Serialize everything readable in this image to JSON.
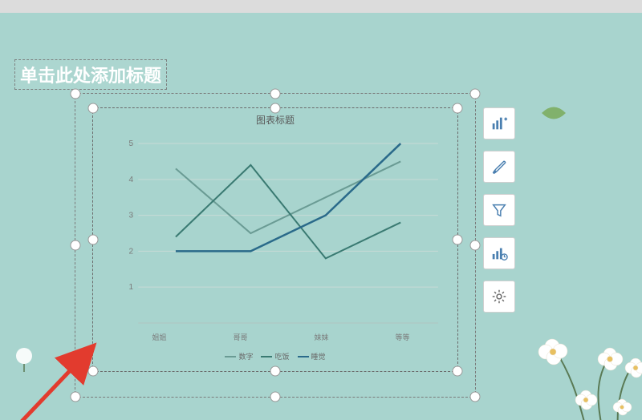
{
  "slide": {
    "background_color": "#a8d4ce",
    "title_placeholder": "单击此处添加标题",
    "title_color": "#ffffff",
    "title_fontsize": 22
  },
  "chart": {
    "type": "line",
    "title": "图表标题",
    "title_fontsize": 12,
    "title_color": "#5a5a5a",
    "categories": [
      "姐姐",
      "哥哥",
      "妹妹",
      "等等"
    ],
    "ylim": [
      0,
      5
    ],
    "ytick_step": 1,
    "yticks": [
      "1",
      "2",
      "3",
      "4",
      "5"
    ],
    "grid_color": "#c8dad6",
    "axis_color": "#b0c4c0",
    "label_color": "#7a7a7a",
    "label_fontsize": 10,
    "xcat_fontsize": 9,
    "series": [
      {
        "name": "数字",
        "color": "#6a9b94",
        "width": 2,
        "values": [
          4.3,
          2.5,
          3.5,
          4.5
        ]
      },
      {
        "name": "吃饭",
        "color": "#3a7a72",
        "width": 2,
        "values": [
          2.4,
          4.4,
          1.8,
          2.8
        ]
      },
      {
        "name": "睡觉",
        "color": "#2a6a8a",
        "width": 2.5,
        "values": [
          2.0,
          2.0,
          3.0,
          5.0
        ]
      }
    ],
    "legend_fontsize": 9,
    "legend_color": "#6a6a6a"
  },
  "toolbar": {
    "buttons": [
      {
        "name": "chart-elements",
        "icon": "chart-plus"
      },
      {
        "name": "chart-styles",
        "icon": "brush"
      },
      {
        "name": "chart-filters",
        "icon": "funnel"
      },
      {
        "name": "chart-type",
        "icon": "chart-change"
      },
      {
        "name": "chart-settings",
        "icon": "gear"
      }
    ],
    "button_bg": "#ffffff",
    "button_border": "#d0d0d0",
    "icon_color": "#4a7fb0"
  },
  "selection": {
    "handle_fill": "#ffffff",
    "handle_border": "#9a9a9a",
    "dash_color": "#7a7a7a"
  },
  "annotation": {
    "arrow_color": "#e23b2e"
  }
}
